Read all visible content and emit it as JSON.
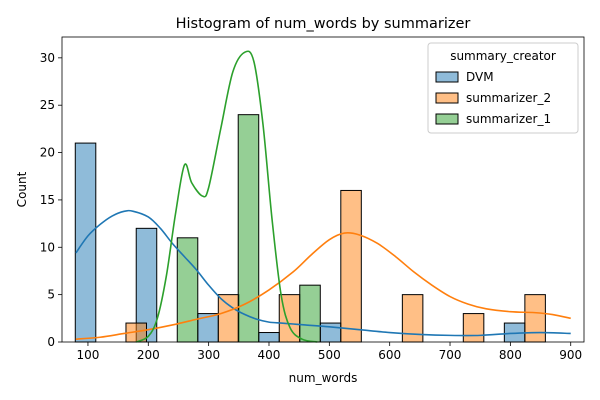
{
  "chart_data": {
    "type": "bar",
    "title": "Histogram of num_words by summarizer",
    "xlabel": "num_words",
    "ylabel": "Count",
    "xlim": [
      57,
      922
    ],
    "ylim": [
      0,
      32.2
    ],
    "x_ticks": [
      100,
      200,
      300,
      400,
      500,
      600,
      700,
      800,
      900
    ],
    "y_ticks": [
      0,
      5,
      10,
      15,
      20,
      25,
      30
    ],
    "legend": {
      "title": "summary_creator",
      "placement": "top-right"
    },
    "grid": false,
    "series": [
      {
        "name": "DVM",
        "color": "#1f77b4",
        "bins": [
          {
            "start": 79,
            "end": 113,
            "value": 21
          },
          {
            "start": 180,
            "end": 214,
            "value": 12
          },
          {
            "start": 282,
            "end": 316,
            "value": 3
          },
          {
            "start": 383,
            "end": 417,
            "value": 1
          },
          {
            "start": 485,
            "end": 519,
            "value": 2
          },
          {
            "start": 790,
            "end": 824,
            "value": 2
          }
        ],
        "kde": [
          [
            80,
            9.4
          ],
          [
            100,
            11.2
          ],
          [
            120,
            12.4
          ],
          [
            140,
            13.3
          ],
          [
            160,
            13.8
          ],
          [
            175,
            13.8
          ],
          [
            200,
            13.2
          ],
          [
            220,
            12.0
          ],
          [
            240,
            10.4
          ],
          [
            260,
            9.0
          ],
          [
            280,
            7.6
          ],
          [
            300,
            6.0
          ],
          [
            320,
            4.6
          ],
          [
            340,
            3.6
          ],
          [
            360,
            2.9
          ],
          [
            380,
            2.4
          ],
          [
            400,
            2.1
          ],
          [
            420,
            2.0
          ],
          [
            440,
            1.9
          ],
          [
            460,
            1.8
          ],
          [
            500,
            1.6
          ],
          [
            550,
            1.3
          ],
          [
            600,
            1.0
          ],
          [
            650,
            0.8
          ],
          [
            700,
            0.7
          ],
          [
            750,
            0.7
          ],
          [
            800,
            0.9
          ],
          [
            850,
            1.0
          ],
          [
            900,
            0.9
          ]
        ]
      },
      {
        "name": "summarizer_2",
        "color": "#ff7f0e",
        "bins": [
          {
            "start": 163,
            "end": 197,
            "value": 2
          },
          {
            "start": 316,
            "end": 350,
            "value": 5
          },
          {
            "start": 417,
            "end": 451,
            "value": 5
          },
          {
            "start": 519,
            "end": 553,
            "value": 16
          },
          {
            "start": 621,
            "end": 655,
            "value": 5
          },
          {
            "start": 722,
            "end": 756,
            "value": 3
          },
          {
            "start": 824,
            "end": 858,
            "value": 5
          }
        ],
        "kde": [
          [
            80,
            0.3
          ],
          [
            120,
            0.5
          ],
          [
            160,
            0.9
          ],
          [
            200,
            1.3
          ],
          [
            240,
            1.8
          ],
          [
            280,
            2.4
          ],
          [
            320,
            3.0
          ],
          [
            360,
            4.0
          ],
          [
            400,
            5.5
          ],
          [
            440,
            7.4
          ],
          [
            470,
            9.2
          ],
          [
            500,
            10.8
          ],
          [
            525,
            11.5
          ],
          [
            550,
            11.3
          ],
          [
            580,
            10.4
          ],
          [
            610,
            9.0
          ],
          [
            640,
            7.4
          ],
          [
            670,
            6.0
          ],
          [
            700,
            4.8
          ],
          [
            730,
            4.0
          ],
          [
            760,
            3.5
          ],
          [
            800,
            3.2
          ],
          [
            840,
            3.1
          ],
          [
            870,
            2.9
          ],
          [
            900,
            2.5
          ]
        ]
      },
      {
        "name": "summarizer_1",
        "color": "#2ca02c",
        "bins": [
          {
            "start": 248,
            "end": 282,
            "value": 11
          },
          {
            "start": 349,
            "end": 383,
            "value": 24
          },
          {
            "start": 451,
            "end": 485,
            "value": 6
          }
        ],
        "kde": [
          [
            180,
            0.0
          ],
          [
            200,
            0.6
          ],
          [
            215,
            2.5
          ],
          [
            230,
            7.0
          ],
          [
            245,
            13.5
          ],
          [
            260,
            18.7
          ],
          [
            272,
            16.8
          ],
          [
            290,
            15.4
          ],
          [
            300,
            16.3
          ],
          [
            320,
            22.5
          ],
          [
            340,
            28.5
          ],
          [
            360,
            30.6
          ],
          [
            375,
            29.6
          ],
          [
            390,
            23.0
          ],
          [
            405,
            13.0
          ],
          [
            420,
            5.0
          ],
          [
            435,
            1.5
          ],
          [
            455,
            0.3
          ],
          [
            480,
            0.0
          ]
        ]
      }
    ]
  }
}
